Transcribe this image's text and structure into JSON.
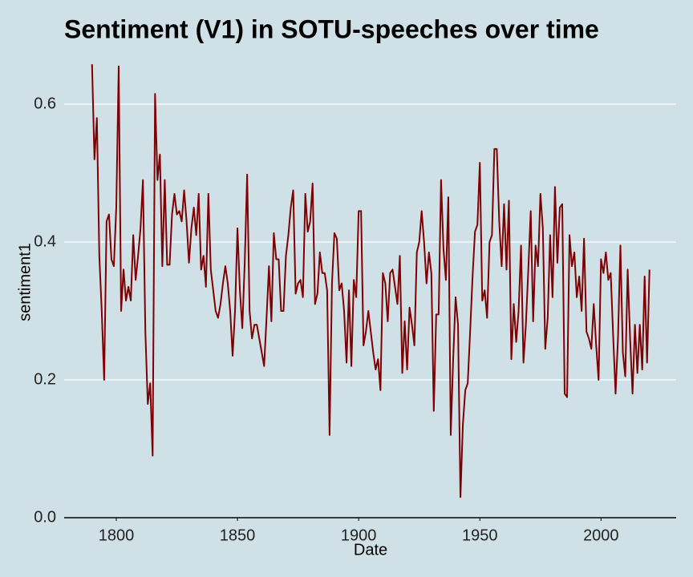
{
  "chart_data": {
    "type": "line",
    "title": "Sentiment (V1) in SOTU-speeches over time",
    "x_label": "Date",
    "y_label": "sentiment1",
    "x": [
      1790,
      1791,
      1792,
      1793,
      1794,
      1795,
      1796,
      1797,
      1798,
      1799,
      1800,
      1801,
      1802,
      1803,
      1804,
      1805,
      1806,
      1807,
      1808,
      1809,
      1810,
      1811,
      1812,
      1813,
      1814,
      1815,
      1816,
      1817,
      1818,
      1819,
      1820,
      1821,
      1822,
      1823,
      1824,
      1825,
      1826,
      1827,
      1828,
      1829,
      1830,
      1831,
      1832,
      1833,
      1834,
      1835,
      1836,
      1837,
      1838,
      1839,
      1840,
      1841,
      1842,
      1843,
      1844,
      1845,
      1846,
      1847,
      1848,
      1849,
      1850,
      1851,
      1852,
      1853,
      1854,
      1855,
      1856,
      1857,
      1858,
      1859,
      1860,
      1861,
      1862,
      1863,
      1864,
      1865,
      1866,
      1867,
      1868,
      1869,
      1870,
      1871,
      1872,
      1873,
      1874,
      1875,
      1876,
      1877,
      1878,
      1879,
      1880,
      1881,
      1882,
      1883,
      1884,
      1885,
      1886,
      1887,
      1888,
      1889,
      1890,
      1891,
      1892,
      1893,
      1894,
      1895,
      1896,
      1897,
      1898,
      1899,
      1900,
      1901,
      1902,
      1903,
      1904,
      1905,
      1906,
      1907,
      1908,
      1909,
      1910,
      1911,
      1912,
      1913,
      1914,
      1915,
      1916,
      1917,
      1918,
      1919,
      1920,
      1921,
      1922,
      1923,
      1924,
      1925,
      1926,
      1927,
      1928,
      1929,
      1930,
      1931,
      1932,
      1933,
      1934,
      1935,
      1936,
      1937,
      1938,
      1939,
      1940,
      1941,
      1942,
      1943,
      1944,
      1945,
      1946,
      1947,
      1948,
      1949,
      1950,
      1951,
      1952,
      1953,
      1954,
      1955,
      1956,
      1957,
      1958,
      1959,
      1960,
      1961,
      1962,
      1963,
      1964,
      1965,
      1966,
      1967,
      1968,
      1969,
      1970,
      1971,
      1972,
      1973,
      1974,
      1975,
      1976,
      1977,
      1978,
      1979,
      1980,
      1981,
      1982,
      1983,
      1984,
      1985,
      1986,
      1987,
      1988,
      1989,
      1990,
      1991,
      1992,
      1993,
      1994,
      1995,
      1996,
      1997,
      1998,
      1999,
      2000,
      2001,
      2002,
      2003,
      2004,
      2005,
      2006,
      2007,
      2008,
      2009,
      2010,
      2011,
      2012,
      2013,
      2014,
      2015,
      2016,
      2017,
      2018,
      2019,
      2020
    ],
    "series": [
      {
        "name": "sentiment1",
        "color": "#7f0000",
        "values": [
          0.658,
          0.52,
          0.58,
          0.38,
          0.3,
          0.2,
          0.43,
          0.44,
          0.375,
          0.365,
          0.45,
          0.655,
          0.3,
          0.36,
          0.315,
          0.335,
          0.315,
          0.41,
          0.345,
          0.38,
          0.42,
          0.49,
          0.27,
          0.165,
          0.195,
          0.09,
          0.615,
          0.49,
          0.527,
          0.365,
          0.49,
          0.367,
          0.367,
          0.44,
          0.47,
          0.44,
          0.445,
          0.43,
          0.475,
          0.43,
          0.37,
          0.42,
          0.45,
          0.41,
          0.47,
          0.36,
          0.38,
          0.335,
          0.47,
          0.36,
          0.33,
          0.3,
          0.29,
          0.31,
          0.34,
          0.365,
          0.34,
          0.3,
          0.235,
          0.3,
          0.42,
          0.33,
          0.275,
          0.37,
          0.498,
          0.3,
          0.26,
          0.28,
          0.28,
          0.26,
          0.24,
          0.22,
          0.29,
          0.365,
          0.285,
          0.413,
          0.375,
          0.375,
          0.3,
          0.3,
          0.38,
          0.41,
          0.45,
          0.475,
          0.325,
          0.34,
          0.345,
          0.32,
          0.47,
          0.415,
          0.43,
          0.485,
          0.31,
          0.325,
          0.385,
          0.355,
          0.355,
          0.33,
          0.12,
          0.34,
          0.413,
          0.405,
          0.33,
          0.34,
          0.3,
          0.225,
          0.33,
          0.22,
          0.345,
          0.32,
          0.445,
          0.445,
          0.25,
          0.27,
          0.3,
          0.27,
          0.24,
          0.215,
          0.23,
          0.185,
          0.355,
          0.34,
          0.285,
          0.355,
          0.36,
          0.335,
          0.31,
          0.38,
          0.21,
          0.285,
          0.215,
          0.305,
          0.28,
          0.25,
          0.385,
          0.4,
          0.445,
          0.4,
          0.34,
          0.385,
          0.355,
          0.155,
          0.295,
          0.295,
          0.49,
          0.39,
          0.345,
          0.465,
          0.12,
          0.23,
          0.32,
          0.28,
          0.03,
          0.135,
          0.185,
          0.195,
          0.27,
          0.35,
          0.415,
          0.425,
          0.515,
          0.315,
          0.33,
          0.29,
          0.4,
          0.41,
          0.535,
          0.535,
          0.43,
          0.365,
          0.455,
          0.36,
          0.46,
          0.23,
          0.31,
          0.255,
          0.3,
          0.395,
          0.225,
          0.28,
          0.36,
          0.445,
          0.285,
          0.395,
          0.365,
          0.47,
          0.42,
          0.245,
          0.29,
          0.41,
          0.32,
          0.48,
          0.37,
          0.45,
          0.455,
          0.18,
          0.175,
          0.41,
          0.365,
          0.385,
          0.32,
          0.35,
          0.3,
          0.405,
          0.27,
          0.26,
          0.245,
          0.31,
          0.25,
          0.2,
          0.375,
          0.355,
          0.385,
          0.345,
          0.355,
          0.265,
          0.18,
          0.26,
          0.395,
          0.24,
          0.205,
          0.36,
          0.26,
          0.18,
          0.28,
          0.21,
          0.28,
          0.215,
          0.35,
          0.225,
          0.36
        ]
      }
    ],
    "xlim": [
      1778.5,
      2031
    ],
    "ylim": [
      0,
      0.664
    ],
    "xticks": [
      1800,
      1850,
      1900,
      1950,
      2000
    ],
    "yticks": [
      {
        "value": 0,
        "label": "0.0"
      },
      0.2,
      0.4,
      0.6
    ],
    "grid": true,
    "grid_color": "#ffffff",
    "background": "#d0e0e7"
  }
}
